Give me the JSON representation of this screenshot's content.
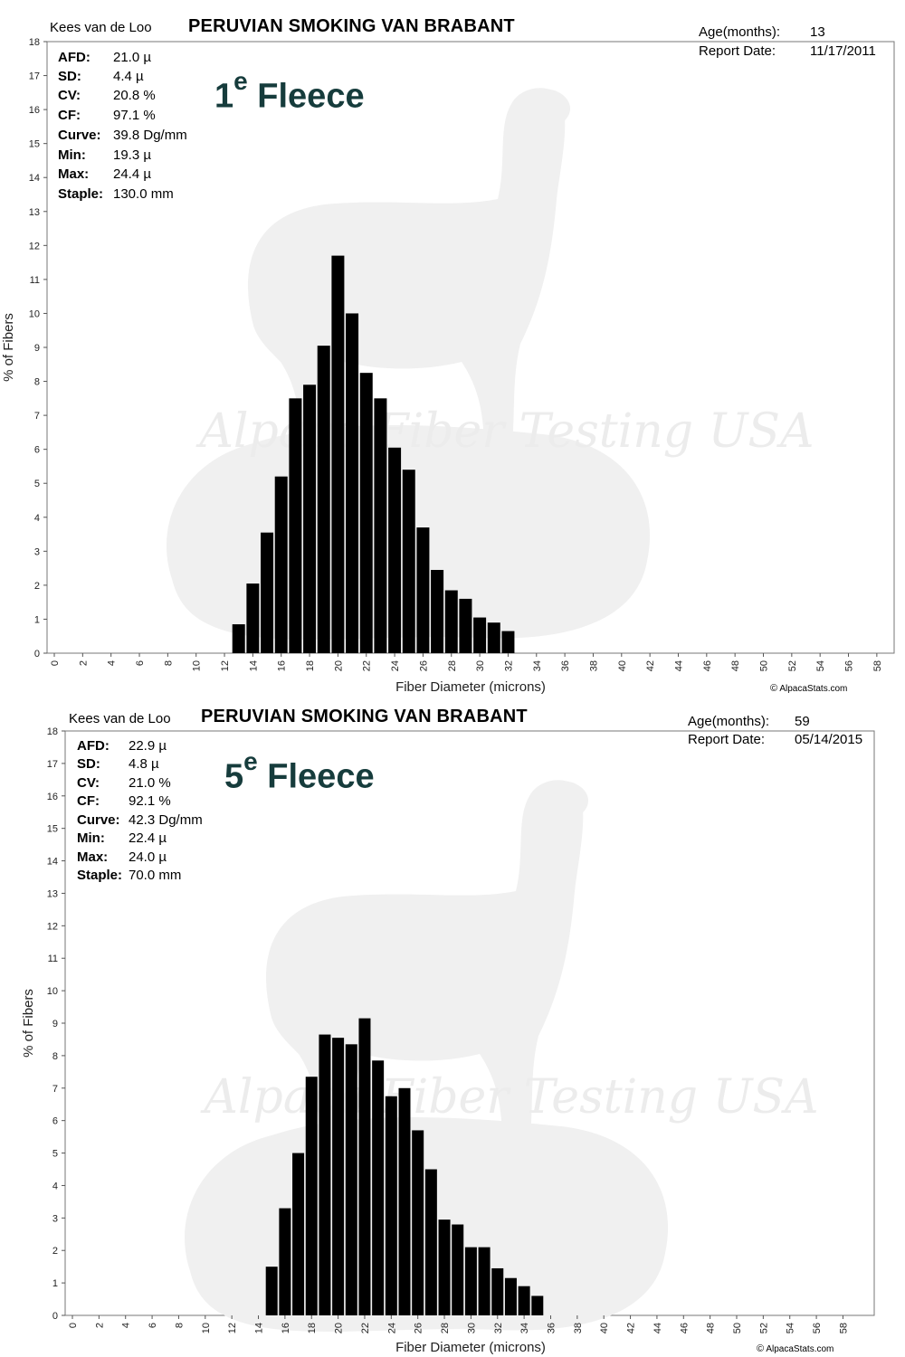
{
  "reports": [
    {
      "owner": "Kees  van de Loo",
      "title": "PERUVIAN SMOKING VAN BRABANT",
      "age_label": "Age(months):",
      "age_value": "13",
      "report_date_label": "Report Date:",
      "report_date_value": "11/17/2011",
      "fleece_number": "1",
      "fleece_sup": "e",
      "fleece_word": "Fleece",
      "stats": [
        {
          "label": "AFD:",
          "value": "21.0 µ"
        },
        {
          "label": "SD:",
          "value": "4.4 µ"
        },
        {
          "label": "CV:",
          "value": "20.8 %"
        },
        {
          "label": "CF:",
          "value": "97.1 %"
        },
        {
          "label": "Curve:",
          "value": "39.8 Dg/mm"
        },
        {
          "label": "Min:",
          "value": "19.3 µ"
        },
        {
          "label": "Max:",
          "value": "24.4 µ"
        },
        {
          "label": "Staple:",
          "value": "130.0 mm"
        }
      ],
      "watermark": "Alpaca Fiber Testing USA",
      "credit_symbol": "©",
      "credit_text": "AlpacaStats.com",
      "icons": [
        "alpaca-silhouette-watermark-icon"
      ]
    },
    {
      "owner": "Kees  van de Loo",
      "title": "PERUVIAN SMOKING VAN BRABANT",
      "age_label": "Age(months):",
      "age_value": "59",
      "report_date_label": "Report Date:",
      "report_date_value": "05/14/2015",
      "fleece_number": "5",
      "fleece_sup": "e",
      "fleece_word": "Fleece",
      "stats": [
        {
          "label": "AFD:",
          "value": "22.9 µ"
        },
        {
          "label": "SD:",
          "value": "4.8 µ"
        },
        {
          "label": "CV:",
          "value": "21.0 %"
        },
        {
          "label": "CF:",
          "value": "92.1 %"
        },
        {
          "label": "Curve:",
          "value": "42.3 Dg/mm"
        },
        {
          "label": "Min:",
          "value": "22.4 µ"
        },
        {
          "label": "Max:",
          "value": "24.0 µ"
        },
        {
          "label": "Staple:",
          "value": "70.0 mm"
        }
      ],
      "watermark": "Alpaca Fiber Testing USA",
      "credit_symbol": "©",
      "credit_text": "AlpacaStats.com",
      "icons": [
        "alpaca-silhouette-watermark-icon"
      ]
    }
  ],
  "chart_data": [
    {
      "type": "bar",
      "title": "PERUVIAN SMOKING VAN BRABANT",
      "xlabel": "Fiber Diameter (microns)",
      "ylabel": "% of Fibers",
      "xlim": [
        0,
        59
      ],
      "ylim": [
        0,
        18
      ],
      "xticks": [
        0,
        2,
        4,
        6,
        8,
        10,
        12,
        14,
        16,
        18,
        20,
        22,
        24,
        26,
        28,
        30,
        32,
        34,
        36,
        38,
        40,
        42,
        44,
        46,
        48,
        50,
        52,
        54,
        56,
        58
      ],
      "yticks": [
        0,
        1,
        2,
        3,
        4,
        5,
        6,
        7,
        8,
        9,
        10,
        11,
        12,
        13,
        14,
        15,
        16,
        17,
        18
      ],
      "grid": false,
      "x": [
        13,
        14,
        15,
        16,
        17,
        18,
        19,
        20,
        21,
        22,
        23,
        24,
        25,
        26,
        27,
        28,
        29,
        30,
        31,
        32
      ],
      "values": [
        0.85,
        2.05,
        3.55,
        5.2,
        7.5,
        7.9,
        9.05,
        11.7,
        10.0,
        8.25,
        7.5,
        6.05,
        5.4,
        3.7,
        2.45,
        1.85,
        1.6,
        1.05,
        0.9,
        0.65
      ]
    },
    {
      "type": "bar",
      "title": "PERUVIAN SMOKING VAN BRABANT",
      "xlabel": "Fiber Diameter (microns)",
      "ylabel": "% of Fibers",
      "xlim": [
        0,
        59
      ],
      "ylim": [
        0,
        18
      ],
      "xticks": [
        0,
        2,
        4,
        6,
        8,
        10,
        12,
        14,
        16,
        18,
        20,
        22,
        24,
        26,
        28,
        30,
        32,
        34,
        36,
        38,
        40,
        42,
        44,
        46,
        48,
        50,
        52,
        54,
        56,
        58
      ],
      "yticks": [
        0,
        1,
        2,
        3,
        4,
        5,
        6,
        7,
        8,
        9,
        10,
        11,
        12,
        13,
        14,
        15,
        16,
        17,
        18
      ],
      "grid": false,
      "x": [
        15,
        16,
        17,
        18,
        19,
        20,
        21,
        22,
        23,
        24,
        25,
        26,
        27,
        28,
        29,
        30,
        31,
        32,
        33,
        34,
        35
      ],
      "values": [
        1.5,
        3.3,
        5.0,
        7.35,
        8.65,
        8.55,
        8.35,
        9.15,
        7.85,
        6.75,
        7.0,
        5.7,
        4.5,
        2.95,
        2.8,
        2.1,
        2.1,
        1.45,
        1.15,
        0.9,
        0.6
      ]
    }
  ]
}
